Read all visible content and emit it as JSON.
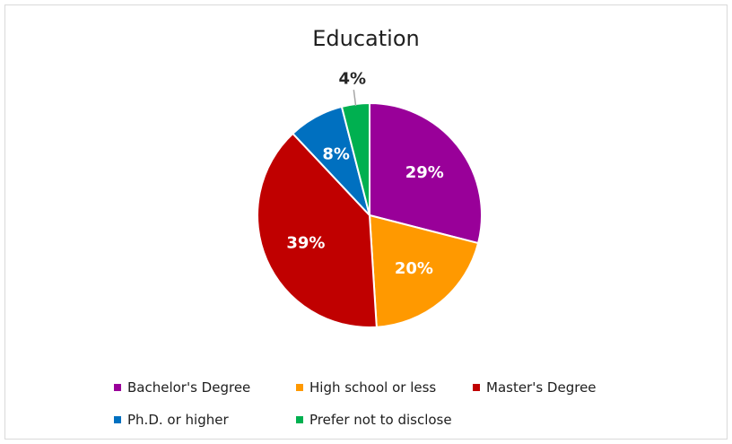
{
  "chart_data": {
    "type": "pie",
    "title": "Education",
    "categories": [
      "Bachelor's Degree",
      "High school or less",
      "Master's  Degree",
      "Ph.D. or higher",
      "Prefer not to disclose"
    ],
    "values": [
      29,
      20,
      39,
      8,
      4
    ],
    "labels": [
      "29%",
      "20%",
      "39%",
      "8%",
      "4%"
    ],
    "colors": [
      "#990099",
      "#ff9900",
      "#c00000",
      "#0070c0",
      "#00b050"
    ],
    "label_colors": [
      "#ffffff",
      "#ffffff",
      "#ffffff",
      "#ffffff",
      "#262626"
    ],
    "legend_position": "bottom"
  }
}
